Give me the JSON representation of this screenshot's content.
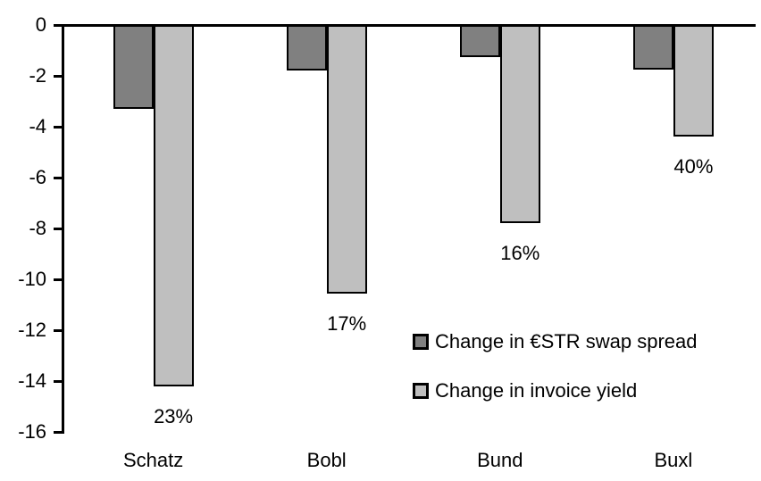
{
  "chart_data": {
    "type": "bar",
    "title": "",
    "xlabel": "",
    "ylabel": "",
    "categories": [
      "Schatz",
      "Bobl",
      "Bund",
      "Buxl"
    ],
    "series": [
      {
        "name": "Change in €STR swap spread",
        "color": "#808080",
        "values": [
          -3.3,
          -1.8,
          -1.25,
          -1.75
        ]
      },
      {
        "name": "Change in invoice yield",
        "color": "#BFBFBF",
        "values": [
          -14.2,
          -10.55,
          -7.8,
          -4.4
        ],
        "point_labels": [
          "23%",
          "17%",
          "16%",
          "40%"
        ]
      }
    ],
    "ylim": [
      -16,
      0
    ],
    "yticks": [
      0,
      -2,
      -4,
      -6,
      -8,
      -10,
      -12,
      -14,
      -16
    ],
    "grid": false,
    "legend_position": "inside-center-right",
    "bar_outline_color": "#000000",
    "axis_color": "#000000",
    "background_color": "#FFFFFF"
  }
}
